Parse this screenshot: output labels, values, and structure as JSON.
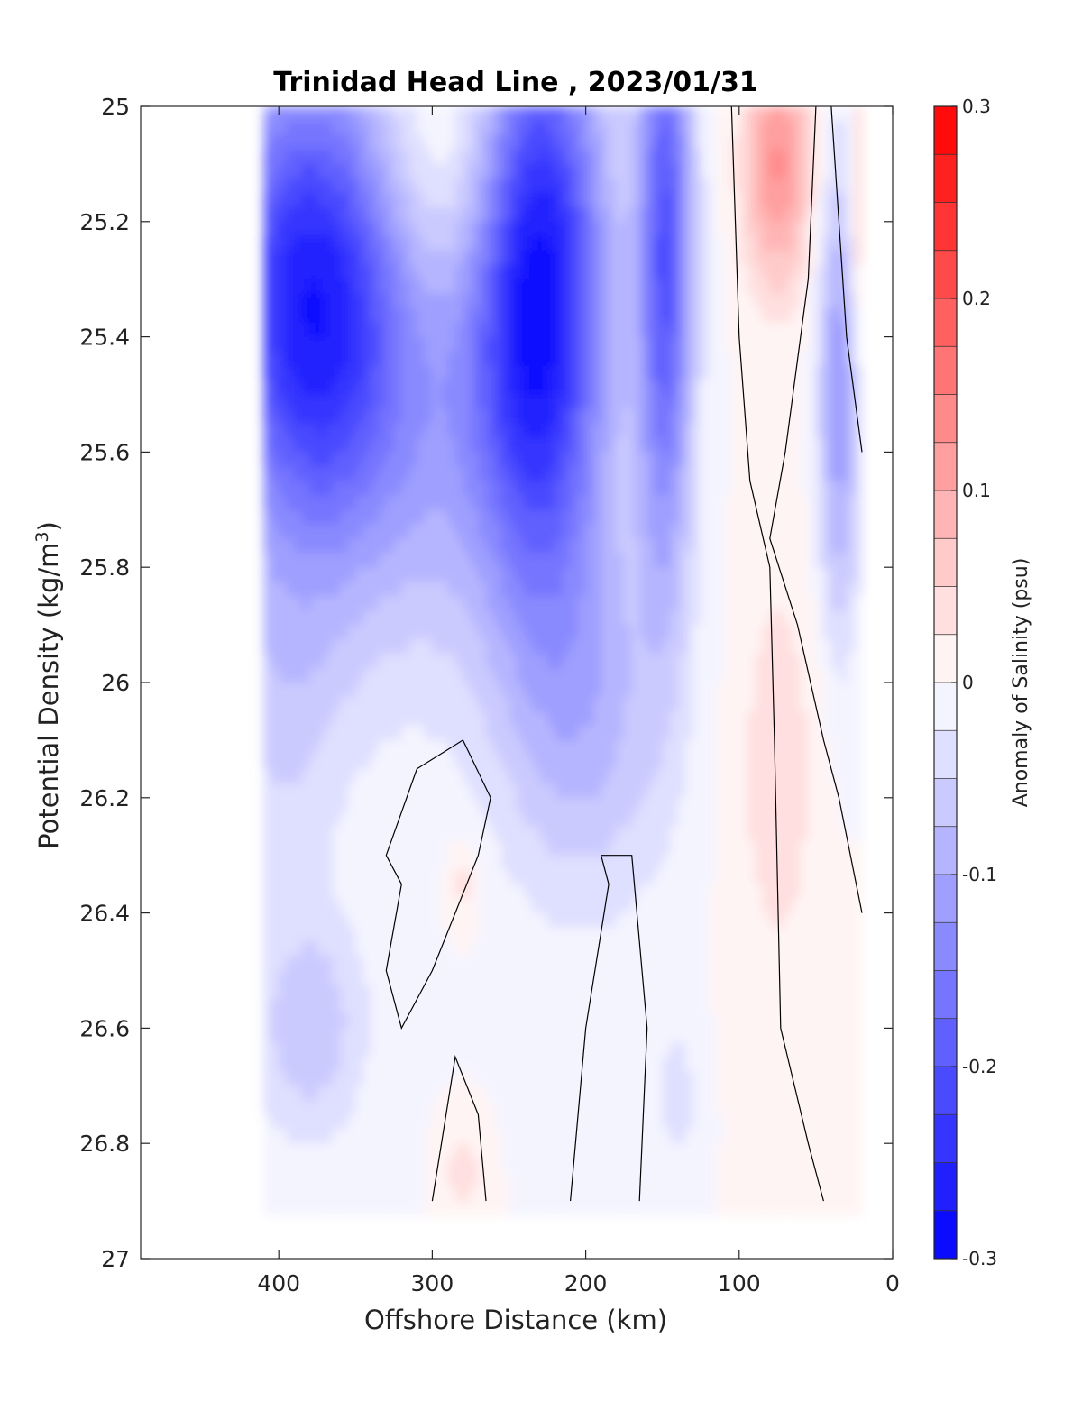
{
  "chart_data": {
    "type": "contourf",
    "title": "Trinidad Head Line , 2023/01/31",
    "xlabel": "Offshore Distance (km)",
    "ylabel": "Potential Density (kg/m",
    "ylabel_sup": "3",
    "ylabel_close": ")",
    "xlim": [
      490,
      0
    ],
    "ylim": [
      27,
      25
    ],
    "x_reversed": true,
    "y_reversed": true,
    "x_ticks": [
      "400",
      "300",
      "200",
      "100",
      "0"
    ],
    "y_ticks": [
      "25",
      "25.2",
      "25.4",
      "25.6",
      "25.8",
      "26",
      "26.2",
      "26.4",
      "26.6",
      "26.8",
      "27"
    ],
    "colorbar": {
      "label": "Anomaly of Salinity (psu)",
      "range": [
        -0.3,
        0.3
      ],
      "levels": 24,
      "tick_labels": [
        "0.3",
        "0.2",
        "0.1",
        "0",
        "-0.1",
        "-0.2",
        "-0.3"
      ],
      "colors": {
        "negative": "#0000ff",
        "zero": "#ffffff",
        "positive": "#ff0000"
      }
    },
    "data_extent": {
      "x": [
        410,
        20
      ],
      "y": [
        25,
        26.9
      ]
    },
    "features": [
      {
        "kind": "min",
        "x": 380,
        "y": 25.33,
        "value": -0.27
      },
      {
        "kind": "min",
        "x": 230,
        "y": 25.3,
        "value": -0.28
      },
      {
        "kind": "min",
        "x": 148,
        "y": 25.3,
        "value": -0.24
      },
      {
        "kind": "min",
        "x": 35,
        "y": 25.5,
        "value": -0.13
      },
      {
        "kind": "min",
        "x": 380,
        "y": 26.6,
        "value": -0.09
      },
      {
        "kind": "max",
        "x": 75,
        "y": 25.1,
        "value": 0.13
      },
      {
        "kind": "max",
        "x": 75,
        "y": 26.15,
        "value": 0.04
      },
      {
        "kind": "max",
        "x": 20,
        "y": 25.2,
        "value": 0.08
      },
      {
        "kind": "max",
        "x": 280,
        "y": 26.35,
        "value": 0.02
      },
      {
        "kind": "max",
        "x": 280,
        "y": 26.85,
        "value": 0.03
      }
    ],
    "grid": false
  }
}
